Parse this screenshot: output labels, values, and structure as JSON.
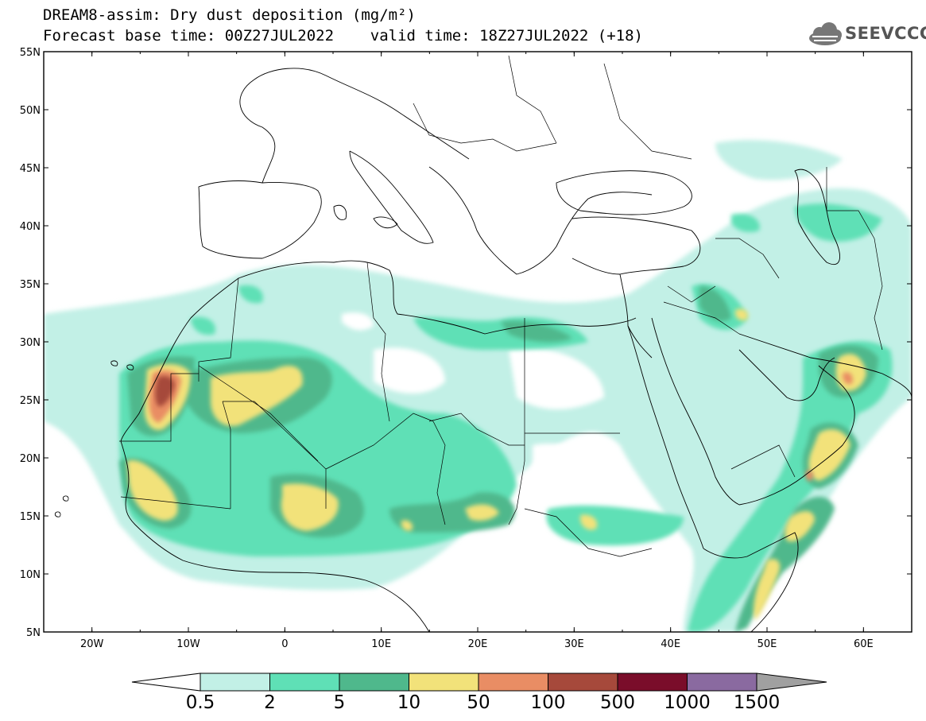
{
  "header": {
    "line1": "DREAM8-assim: Dry dust deposition (mg/m²)",
    "line2": "Forecast base time: 00Z27JUL2022    valid time: 18Z27JUL2022 (+18)"
  },
  "logo": {
    "text": "SEEVCCC",
    "icon": "cloud-icon"
  },
  "map": {
    "lon_range": [
      -25,
      65
    ],
    "lat_range": [
      5,
      55
    ],
    "lon_ticks": [
      {
        "value": -20,
        "label": "20W"
      },
      {
        "value": -10,
        "label": "10W"
      },
      {
        "value": 0,
        "label": "0"
      },
      {
        "value": 10,
        "label": "10E"
      },
      {
        "value": 20,
        "label": "20E"
      },
      {
        "value": 30,
        "label": "30E"
      },
      {
        "value": 40,
        "label": "40E"
      },
      {
        "value": 50,
        "label": "50E"
      },
      {
        "value": 60,
        "label": "60E"
      }
    ],
    "lat_ticks": [
      {
        "value": 55,
        "label": "55N"
      },
      {
        "value": 50,
        "label": "50N"
      },
      {
        "value": 45,
        "label": "45N"
      },
      {
        "value": 40,
        "label": "40N"
      },
      {
        "value": 35,
        "label": "35N"
      },
      {
        "value": 30,
        "label": "30N"
      },
      {
        "value": 25,
        "label": "25N"
      },
      {
        "value": 20,
        "label": "20N"
      },
      {
        "value": 15,
        "label": "15N"
      },
      {
        "value": 10,
        "label": "10N"
      },
      {
        "value": 5,
        "label": "5N"
      }
    ],
    "levels": [
      {
        "label": "0.5",
        "color": "#c2f0e6"
      },
      {
        "label": "2",
        "color": "#5fe0b6"
      },
      {
        "label": "5",
        "color": "#4fb88c"
      },
      {
        "label": "10",
        "color": "#f2e27a"
      },
      {
        "label": "50",
        "color": "#e98d64"
      },
      {
        "label": "100",
        "color": "#a6493b"
      },
      {
        "label": "500",
        "color": "#7a0d2a"
      },
      {
        "label": "1000",
        "color": "#8a6aa0"
      },
      {
        "label": "1500",
        "color": "#a0a0a0"
      }
    ]
  }
}
